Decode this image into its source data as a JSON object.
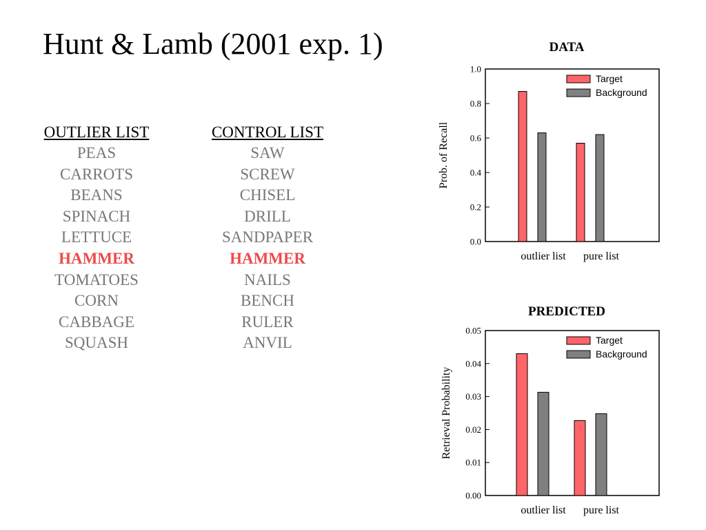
{
  "slide": {
    "title": "Hunt & Lamb (2001 exp. 1)"
  },
  "lists": [
    {
      "header": "OUTLIER LIST",
      "items": [
        "PEAS",
        "CARROTS",
        "BEANS",
        "SPINACH",
        "LETTUCE",
        "HAMMER",
        "TOMATOES",
        "CORN",
        "CABBAGE",
        "SQUASH"
      ],
      "highlight_index": 5
    },
    {
      "header": "CONTROL LIST",
      "items": [
        "SAW",
        "SCREW",
        "CHISEL",
        "DRILL",
        "SANDPAPER",
        "HAMMER",
        "NAILS",
        "BENCH",
        "RULER",
        "ANVIL"
      ],
      "highlight_index": 5
    }
  ],
  "colors": {
    "target": "#ff6468",
    "background": "#808080",
    "list_item": "#777777",
    "highlight": "#ee4a4a"
  },
  "chart_data": [
    {
      "type": "bar",
      "title": "DATA",
      "ylabel": "Prob. of  Recall",
      "xlabel": "",
      "categories": [
        "outlier list",
        "pure list"
      ],
      "series": [
        {
          "name": "Target",
          "values": [
            0.87,
            0.57
          ]
        },
        {
          "name": "Background",
          "values": [
            0.63,
            0.62
          ]
        }
      ],
      "ylim": [
        0,
        1.0
      ],
      "yticks": [
        "0.0",
        "0.2",
        "0.4",
        "0.6",
        "0.8",
        "1.0"
      ],
      "legend": "top-right",
      "grid": false
    },
    {
      "type": "bar",
      "title": "PREDICTED",
      "ylabel": "Retrieval Probability",
      "xlabel": "",
      "categories": [
        "outlier list",
        "pure list"
      ],
      "series": [
        {
          "name": "Target",
          "values": [
            0.043,
            0.0227
          ]
        },
        {
          "name": "Background",
          "values": [
            0.0313,
            0.0248
          ]
        }
      ],
      "ylim": [
        0,
        0.05
      ],
      "yticks": [
        "0.00",
        "0.01",
        "0.02",
        "0.03",
        "0.04",
        "0.05"
      ],
      "legend": "top-right",
      "grid": false
    }
  ]
}
